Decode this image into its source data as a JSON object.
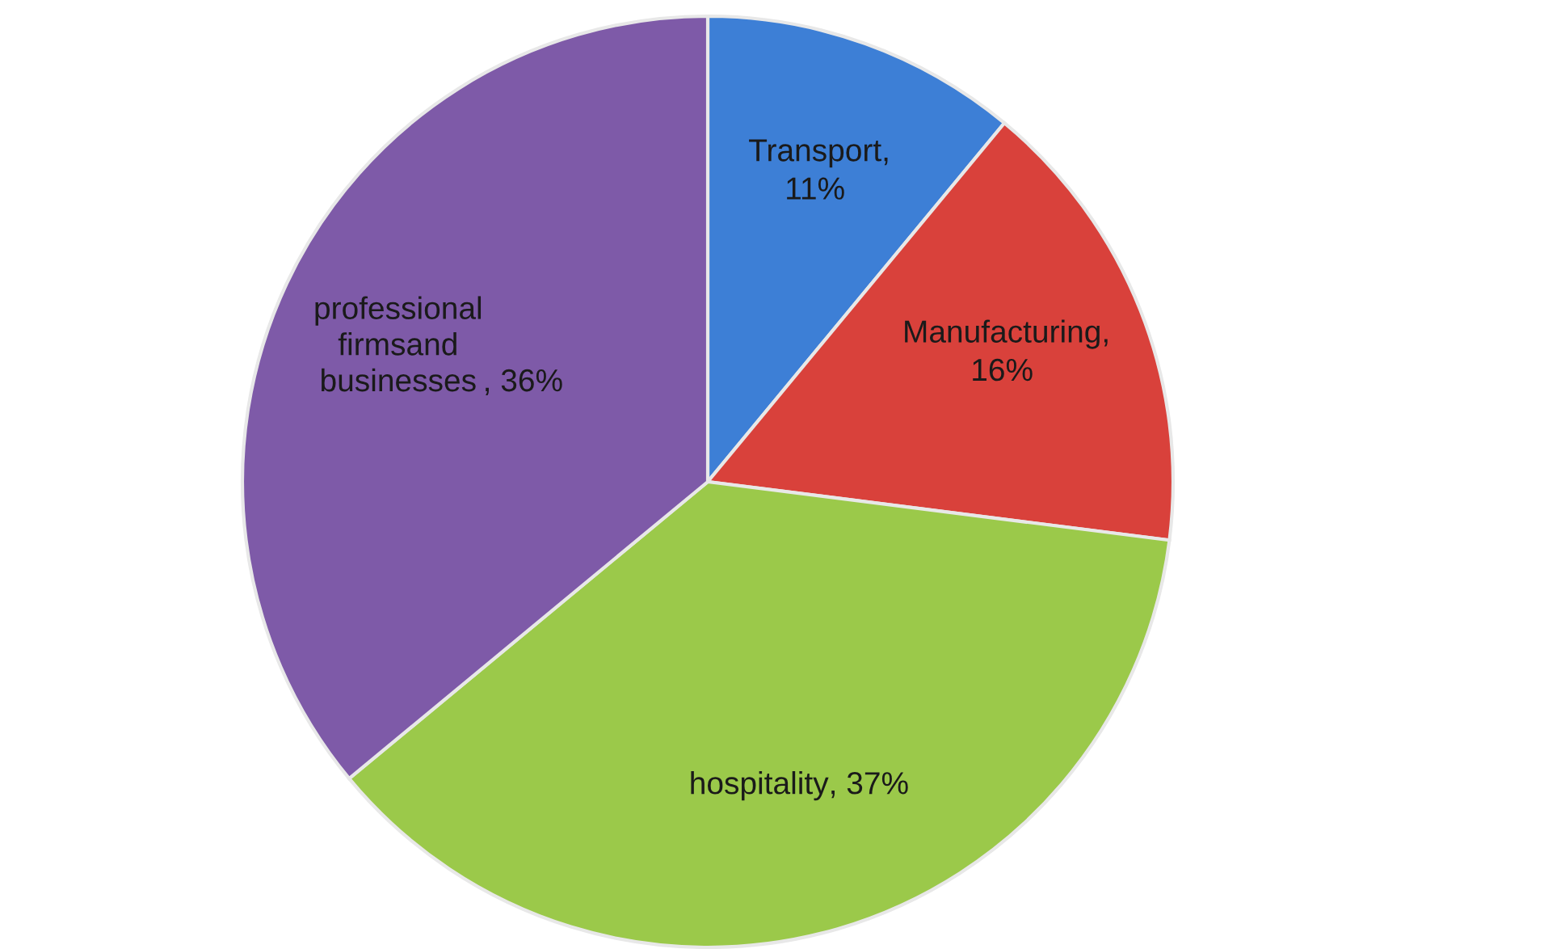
{
  "chart_data": {
    "type": "pie",
    "categories": [
      "Transport",
      "Manufacturing",
      "hospitality",
      "professional firmsand businesses"
    ],
    "values": [
      11,
      16,
      37,
      36
    ],
    "colors": [
      "#3d7fd6",
      "#d9413b",
      "#9bc94a",
      "#7e5aa8"
    ],
    "value_labels": [
      ", 11%",
      ", 16%",
      ", 37%",
      ", 36%"
    ]
  }
}
